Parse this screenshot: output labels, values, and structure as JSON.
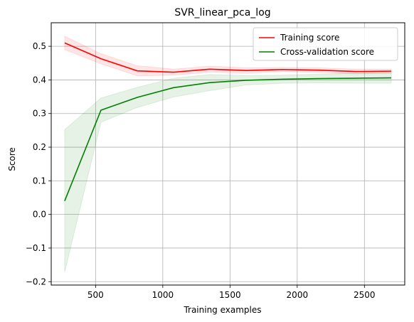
{
  "chart_data": {
    "type": "line",
    "title": "SVR_linear_pca_log",
    "xlabel": "Training examples",
    "ylabel": "Score",
    "xlim": [
      170,
      2800
    ],
    "ylim": [
      -0.21,
      0.57
    ],
    "grid": true,
    "legend_position": "top-right",
    "x": [
      270,
      540,
      810,
      1080,
      1350,
      1620,
      1890,
      2160,
      2430,
      2700
    ],
    "xticks": [
      500,
      1000,
      1500,
      2000,
      2500
    ],
    "yticks": [
      -0.2,
      -0.1,
      0.0,
      0.1,
      0.2,
      0.3,
      0.4,
      0.5
    ],
    "ytick_labels": [
      "−0.2",
      "−0.1",
      "0.0",
      "0.1",
      "0.2",
      "0.3",
      "0.4",
      "0.5"
    ],
    "series": [
      {
        "name": "Training score",
        "color": "#ff0000",
        "band_color": "#ff0000",
        "values": [
          0.51,
          0.463,
          0.427,
          0.423,
          0.432,
          0.428,
          0.431,
          0.429,
          0.425,
          0.426
        ],
        "upper": [
          0.53,
          0.478,
          0.442,
          0.432,
          0.441,
          0.436,
          0.437,
          0.436,
          0.432,
          0.432
        ],
        "lower": [
          0.49,
          0.448,
          0.412,
          0.414,
          0.423,
          0.42,
          0.425,
          0.422,
          0.418,
          0.42
        ]
      },
      {
        "name": "Cross-validation score",
        "color": "#008000",
        "band_color": "#008000",
        "values": [
          0.04,
          0.31,
          0.348,
          0.377,
          0.392,
          0.399,
          0.402,
          0.404,
          0.405,
          0.406
        ],
        "upper": [
          0.252,
          0.346,
          0.378,
          0.405,
          0.416,
          0.413,
          0.414,
          0.417,
          0.42,
          0.422
        ],
        "lower": [
          -0.172,
          0.274,
          0.318,
          0.349,
          0.368,
          0.385,
          0.39,
          0.391,
          0.39,
          0.39
        ]
      }
    ]
  }
}
